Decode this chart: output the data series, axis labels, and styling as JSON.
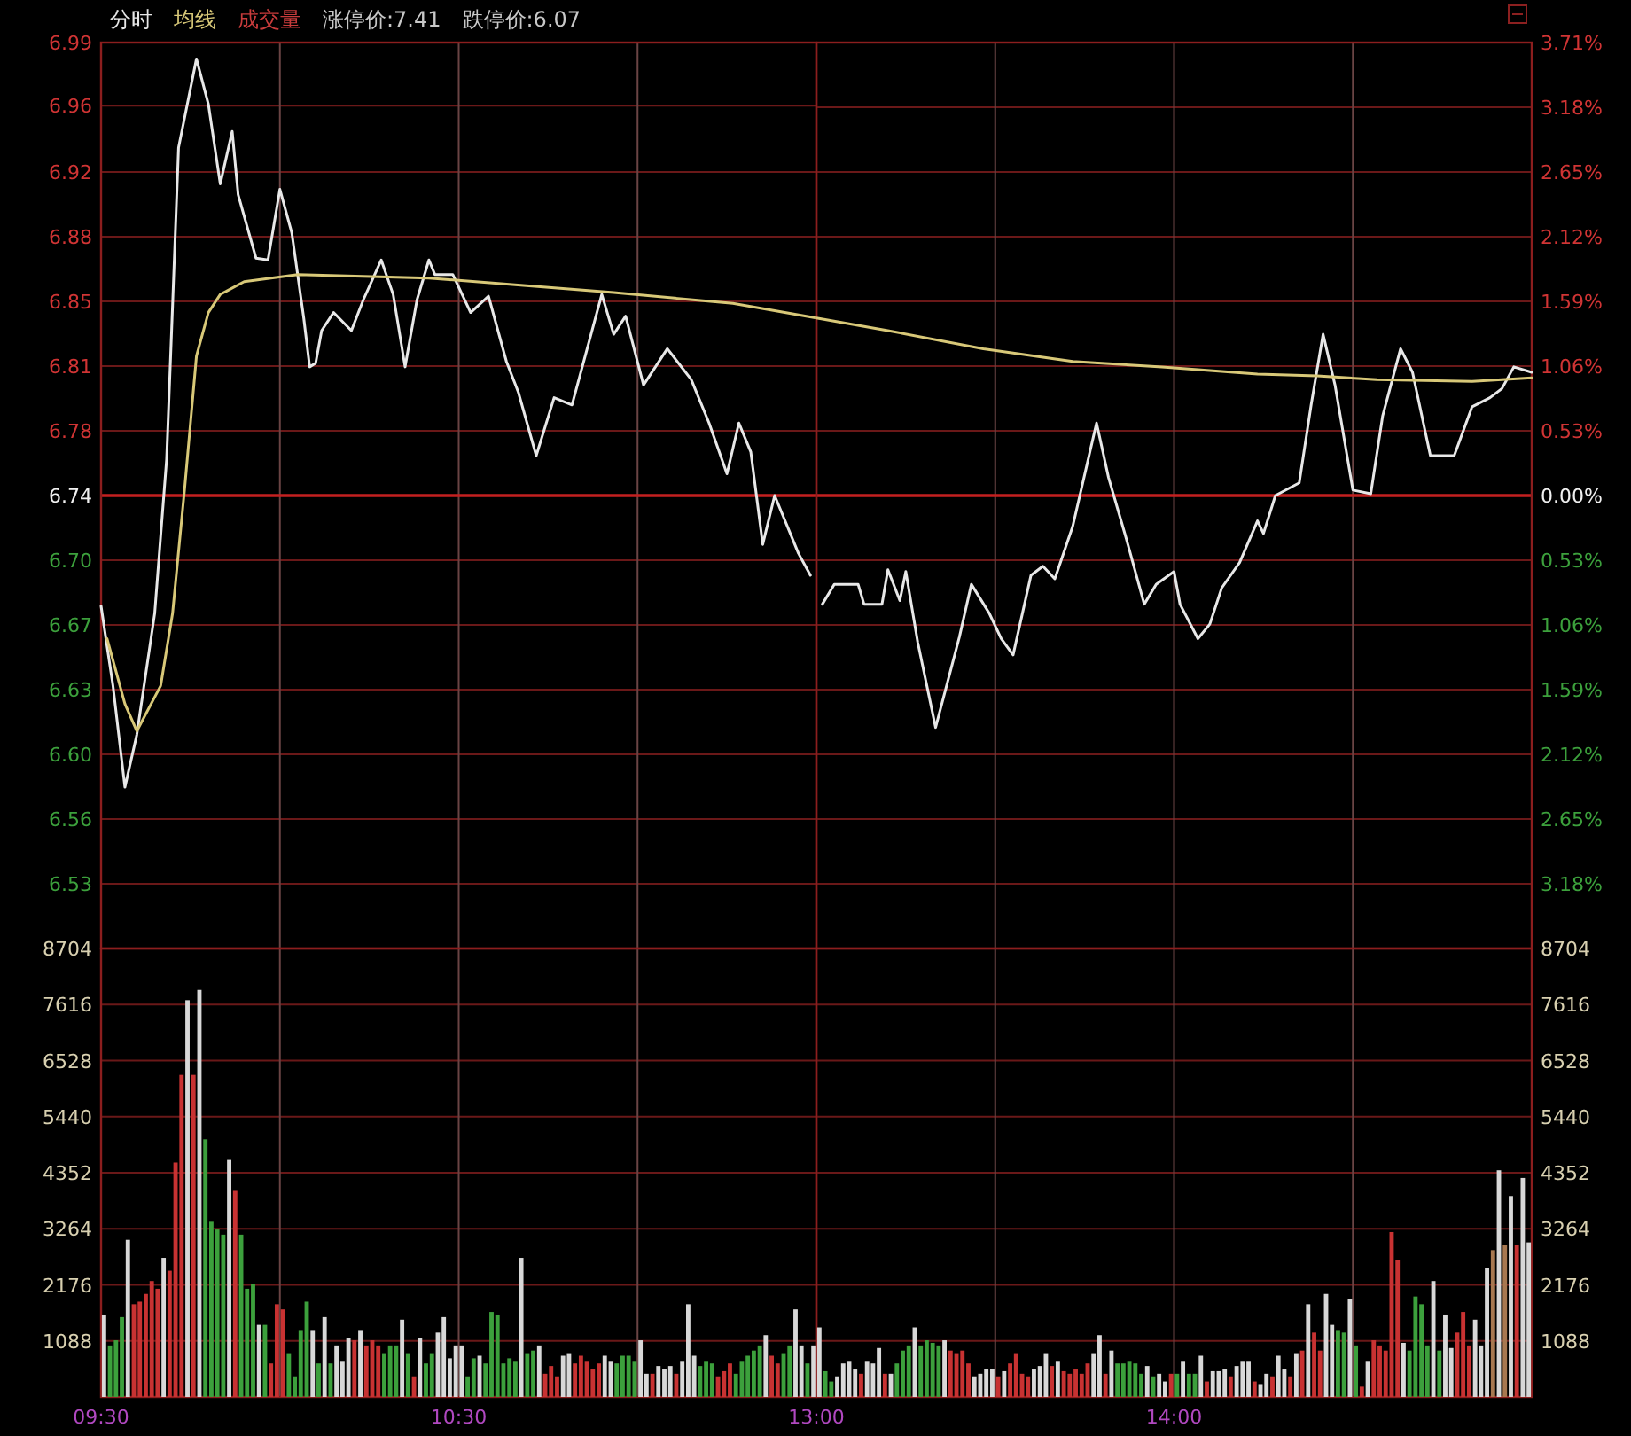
{
  "chart_data": [
    {
      "type": "line",
      "series": [
        {
          "name": "分时",
          "color": "#e8e8e8",
          "x": [
            9.5,
            9.5333,
            9.5667,
            9.6,
            9.65,
            9.6833,
            9.7,
            9.7167,
            9.7667,
            9.8,
            9.8333,
            9.8667,
            9.8833,
            9.9333,
            9.9667,
            10,
            10.0333,
            10.0667,
            10.0833,
            10.1,
            10.1167,
            10.15,
            10.2,
            10.2333,
            10.2833,
            10.3167,
            10.35,
            10.3833,
            10.4167,
            10.4333,
            10.4833,
            10.5333,
            10.5833,
            10.6333,
            10.6667,
            10.7167,
            10.7667,
            10.8167,
            10.9,
            10.9333,
            10.9667,
            11.0167,
            11.0833,
            11.15,
            11.2,
            11.25,
            11.2833,
            11.3167,
            11.35,
            11.3833,
            11.45,
            11.4833
          ],
          "values": [
            6.679,
            6.635,
            6.579,
            6.608,
            6.675,
            6.76,
            6.845,
            6.932,
            6.981,
            6.956,
            6.912,
            6.941,
            6.906,
            6.871,
            6.87,
            6.909,
            6.885,
            6.838,
            6.811,
            6.813,
            6.831,
            6.841,
            6.831,
            6.848,
            6.87,
            6.851,
            6.811,
            6.848,
            6.87,
            6.862,
            6.862,
            6.841,
            6.85,
            6.814,
            6.797,
            6.762,
            6.794,
            6.79,
            6.851,
            6.829,
            6.839,
            6.801,
            6.821,
            6.804,
            6.78,
            6.752,
            6.78,
            6.764,
            6.713,
            6.74,
            6.708,
            6.696
          ]
        },
        {
          "name": "均线",
          "color": "#d8c878",
          "x": [
            9.5167,
            9.5667,
            9.6,
            9.6667,
            9.7,
            9.7333,
            9.7667,
            9.8,
            9.8333,
            9.9,
            10.05,
            10.4167,
            10.9333,
            11.2667,
            11.5
          ],
          "values": [
            6.661,
            6.625,
            6.61,
            6.635,
            6.675,
            6.743,
            6.817,
            6.841,
            6.851,
            6.858,
            6.862,
            6.86,
            6.852,
            6.846,
            6.838
          ]
        }
      ],
      "xlim": [
        9.5,
        11.5
      ],
      "xticks": [
        {
          "value": 9.5,
          "label": null
        },
        {
          "value": 10,
          "label": null
        },
        {
          "value": 10.5,
          "label": null
        },
        {
          "value": 11,
          "label": null
        },
        {
          "value": 11.5,
          "label": null
        }
      ],
      "ylim": [
        6.49,
        6.99
      ],
      "yticks": [
        6.99,
        {
          "value": 6.9551,
          "label": "6.96"
        },
        {
          "value": 6.9186,
          "label": "6.92"
        },
        {
          "value": 6.8829,
          "label": "6.88"
        },
        {
          "value": 6.8471,
          "label": "6.85"
        },
        {
          "value": 6.8114,
          "label": "6.81"
        },
        {
          "value": 6.7757,
          "label": "6.78"
        },
        6.74,
        {
          "value": 6.7043,
          "label": "6.70"
        },
        {
          "value": 6.6686,
          "label": "6.67"
        },
        {
          "value": 6.6329,
          "label": "6.63"
        },
        {
          "value": 6.5971,
          "label": "6.60"
        },
        {
          "value": 6.5614,
          "label": "6.56"
        },
        {
          "value": 6.5257,
          "label": "6.53"
        }
      ],
      "ref_lines": [
        {
          "axis": "y",
          "value": 6.74,
          "color": "#c42020"
        }
      ],
      "grid": true,
      "legend": "top left",
      "tick_labels": "y",
      "annotations": [
        "涨停价:7.41",
        "跌停价:6.07"
      ]
    },
    {
      "type": "line",
      "series": [
        {
          "color": "#e8e8e8",
          "x": [
            13.0167,
            13.05,
            13.1167,
            13.1333,
            13.1833,
            13.2,
            13.2333,
            13.25,
            13.2833,
            13.3333,
            13.4,
            13.4333,
            13.4833,
            13.5167,
            13.55,
            13.6,
            13.6333,
            13.6667,
            13.7167,
            13.7833,
            13.8167,
            13.8667,
            13.9167,
            13.95,
            14,
            14.0167,
            14.0667,
            14.1,
            14.1333,
            14.1833,
            14.2333,
            14.25,
            14.2833,
            14.35,
            14.3833,
            14.4167,
            14.45,
            14.5,
            14.55,
            14.5833,
            14.6333,
            14.6667,
            14.7167,
            14.7833,
            14.8333,
            14.8833,
            14.9167,
            14.95,
            15
          ],
          "values": [
            6.68,
            6.691,
            6.691,
            6.68,
            6.68,
            6.699,
            6.682,
            6.698,
            6.659,
            6.612,
            6.662,
            6.691,
            6.675,
            6.661,
            6.652,
            6.696,
            6.701,
            6.694,
            6.723,
            6.78,
            6.75,
            6.716,
            6.68,
            6.691,
            6.698,
            6.68,
            6.661,
            6.669,
            6.689,
            6.703,
            6.726,
            6.719,
            6.74,
            6.747,
            6.79,
            6.829,
            6.801,
            6.743,
            6.741,
            6.784,
            6.821,
            6.808,
            6.762,
            6.762,
            6.789,
            6.794,
            6.799,
            6.811,
            6.808
          ]
        },
        {
          "color": "#d8c878",
          "x": [
            13,
            13.2,
            13.4667,
            13.7167,
            13.9667,
            14.2333,
            14.4,
            14.5667,
            14.8333,
            15
          ],
          "values": [
            6.838,
            6.831,
            6.821,
            6.814,
            6.811,
            6.807,
            6.806,
            6.804,
            6.803,
            6.805
          ]
        }
      ],
      "xlim": [
        13,
        15
      ],
      "xticks": [
        {
          "value": 13,
          "label": null
        },
        {
          "value": 13.5,
          "label": null
        },
        {
          "value": 14,
          "label": null
        },
        {
          "value": 14.5,
          "label": null
        },
        {
          "value": 15,
          "label": null
        }
      ],
      "ylim": [
        6.49,
        6.99
      ],
      "y2lim": [
        -3.71,
        3.71
      ],
      "y2ticks": [
        {
          "value": 3.71,
          "label": "3.71%"
        },
        {
          "value": 3.18,
          "label": "3.18%"
        },
        {
          "value": 2.65,
          "label": "2.65%"
        },
        {
          "value": 2.12,
          "label": "2.12%"
        },
        {
          "value": 1.59,
          "label": "1.59%"
        },
        {
          "value": 1.06,
          "label": "1.06%"
        },
        {
          "value": 0.53,
          "label": "0.53%"
        },
        {
          "value": 0,
          "label": "0.00%"
        },
        {
          "value": -0.53,
          "label": "0.53%"
        },
        {
          "value": -1.06,
          "label": "1.06%"
        },
        {
          "value": -1.59,
          "label": "1.59%"
        },
        {
          "value": -2.12,
          "label": "2.12%"
        },
        {
          "value": -2.65,
          "label": "2.65%"
        },
        {
          "value": -3.18,
          "label": "3.18%"
        }
      ],
      "ref_lines": [
        {
          "axis": "y",
          "value": 6.74,
          "color": "#c42020"
        }
      ],
      "grid": true,
      "tick_labels": "y"
    },
    {
      "type": "bar",
      "x": [
        9.5083,
        9.525,
        9.5417,
        9.5583,
        9.575,
        9.5917,
        9.6083,
        9.625,
        9.6417,
        9.6583,
        9.675,
        9.6917,
        9.7083,
        9.725,
        9.7417,
        9.7583,
        9.775,
        9.7917,
        9.8083,
        9.825,
        9.8417,
        9.8583,
        9.875,
        9.8917,
        9.9083,
        9.925,
        9.9417,
        9.9583,
        9.975,
        9.9917,
        10.0083,
        10.025,
        10.0417,
        10.0583,
        10.075,
        10.0917,
        10.1083,
        10.125,
        10.1417,
        10.1583,
        10.175,
        10.1917,
        10.2083,
        10.225,
        10.2417,
        10.2583,
        10.275,
        10.2917,
        10.3083,
        10.325,
        10.3417,
        10.3583,
        10.375,
        10.3917,
        10.4083,
        10.425,
        10.4417,
        10.4583,
        10.475,
        10.4917,
        10.5083,
        10.525,
        10.5417,
        10.5583,
        10.575,
        10.5917,
        10.6083,
        10.625,
        10.6417,
        10.6583,
        10.675,
        10.6917,
        10.7083,
        10.725,
        10.7417,
        10.7583,
        10.775,
        10.7917,
        10.8083,
        10.825,
        10.8417,
        10.8583,
        10.875,
        10.8917,
        10.9083,
        10.925,
        10.9417,
        10.9583,
        10.975,
        10.9917,
        11.0083,
        11.025,
        11.0417,
        11.0583,
        11.075,
        11.0917,
        11.1083,
        11.125,
        11.1417,
        11.1583,
        11.175,
        11.1917,
        11.2083,
        11.225,
        11.2417,
        11.2583,
        11.275,
        11.2917,
        11.3083,
        11.325,
        11.3417,
        11.3583,
        11.375,
        11.3917,
        11.4083,
        11.425,
        11.4417,
        11.4583,
        11.475,
        11.4917
      ],
      "series": [
        {
          "name": "成交量",
          "color": "#c83c3c",
          "colors": [
            "#d8d8d8",
            "#3ca03c",
            "#3ca03c",
            "#3ca03c",
            "#d8d8d8",
            "#c83232",
            "#c83232",
            "#c83232",
            "#c83232",
            "#c83232",
            "#d8d8d8",
            "#c83232",
            "#c83232",
            "#c83232",
            "#d8d8d8",
            "#c83232",
            "#d8d8d8",
            "#3ca03c",
            "#3ca03c",
            "#3ca03c",
            "#3ca03c",
            "#d8d8d8",
            "#c83232",
            "#3ca03c",
            "#3ca03c",
            "#3ca03c",
            "#d8d8d8",
            "#3ca03c",
            "#c83232",
            "#c83232",
            "#c83232",
            "#3ca03c",
            "#3ca03c",
            "#3ca03c",
            "#3ca03c",
            "#d8d8d8",
            "#3ca03c",
            "#d8d8d8",
            "#3ca03c",
            "#d8d8d8",
            "#d8d8d8",
            "#d8d8d8",
            "#c83232",
            "#d8d8d8",
            "#c83232",
            "#c83232",
            "#c83232",
            "#3ca03c",
            "#3ca03c",
            "#3ca03c",
            "#d8d8d8",
            "#3ca03c",
            "#c83232",
            "#d8d8d8",
            "#3ca03c",
            "#3ca03c",
            "#d8d8d8",
            "#d8d8d8",
            "#d8d8d8",
            "#d8d8d8",
            "#d8d8d8",
            "#3ca03c",
            "#3ca03c",
            "#d8d8d8",
            "#3ca03c",
            "#3ca03c",
            "#3ca03c",
            "#3ca03c",
            "#3ca03c",
            "#3ca03c",
            "#d8d8d8",
            "#3ca03c",
            "#3ca03c",
            "#d8d8d8",
            "#c83232",
            "#c83232",
            "#c83232",
            "#d8d8d8",
            "#d8d8d8",
            "#c83232",
            "#c83232",
            "#c83232",
            "#c83232",
            "#c83232",
            "#d8d8d8",
            "#d8d8d8",
            "#3ca03c",
            "#3ca03c",
            "#3ca03c",
            "#3ca03c",
            "#d8d8d8",
            "#d8d8d8",
            "#c83232",
            "#d8d8d8",
            "#d8d8d8",
            "#d8d8d8",
            "#c83232",
            "#d8d8d8",
            "#d8d8d8",
            "#d8d8d8",
            "#3ca03c",
            "#3ca03c",
            "#3ca03c",
            "#c83232",
            "#c83232",
            "#c83232",
            "#3ca03c",
            "#3ca03c",
            "#3ca03c",
            "#3ca03c",
            "#3ca03c",
            "#d8d8d8",
            "#c83232",
            "#c83232",
            "#3ca03c",
            "#3ca03c",
            "#d8d8d8",
            "#d8d8d8",
            "#3ca03c",
            "#d8d8d8"
          ],
          "values": [
            1600,
            1000,
            1100,
            1550,
            3050,
            1800,
            1850,
            2000,
            2250,
            2100,
            2700,
            2450,
            4550,
            6250,
            7700,
            6250,
            7900,
            5000,
            3400,
            3250,
            3150,
            4600,
            4000,
            3150,
            2100,
            2200,
            1400,
            1400,
            650,
            1800,
            1700,
            850,
            400,
            1300,
            1850,
            1300,
            650,
            1550,
            650,
            1000,
            700,
            1150,
            1100,
            1300,
            1000,
            1100,
            1000,
            850,
            1000,
            1000,
            1500,
            850,
            400,
            1150,
            650,
            850,
            1250,
            1550,
            750,
            1000,
            1000,
            400,
            750,
            800,
            650,
            1650,
            1600,
            650,
            750,
            700,
            2700,
            850,
            900,
            1000,
            450,
            600,
            400,
            800,
            850,
            650,
            800,
            700,
            550,
            650,
            800,
            700,
            650,
            800,
            800,
            700,
            1100,
            450,
            450,
            600,
            550,
            600,
            450,
            700,
            1800,
            800,
            600,
            700,
            650,
            400,
            500,
            650,
            450,
            700,
            800,
            900,
            1000,
            1200,
            800,
            650,
            850,
            1000,
            1700,
            1000,
            650,
            1000
          ]
        }
      ],
      "xlim": [
        9.5,
        11.5
      ],
      "xticks": [
        {
          "value": 9.5,
          "label": "09:30"
        },
        {
          "value": 10,
          "label": null
        },
        {
          "value": 10.5,
          "label": "10:30"
        },
        {
          "value": 11,
          "label": null
        },
        {
          "value": 11.5,
          "label": null
        }
      ],
      "ylim": [
        0,
        8704
      ],
      "yticks": [
        1088,
        2176,
        3264,
        4352,
        5440,
        6528,
        7616,
        8704
      ],
      "grid": true,
      "legend": "top left"
    },
    {
      "type": "bar",
      "x": [
        13.0083,
        13.025,
        13.0417,
        13.0583,
        13.075,
        13.0917,
        13.1083,
        13.125,
        13.1417,
        13.1583,
        13.175,
        13.1917,
        13.2083,
        13.225,
        13.2417,
        13.2583,
        13.275,
        13.2917,
        13.3083,
        13.325,
        13.3417,
        13.3583,
        13.375,
        13.3917,
        13.4083,
        13.425,
        13.4417,
        13.4583,
        13.475,
        13.4917,
        13.5083,
        13.525,
        13.5417,
        13.5583,
        13.575,
        13.5917,
        13.6083,
        13.625,
        13.6417,
        13.6583,
        13.675,
        13.6917,
        13.7083,
        13.725,
        13.7417,
        13.7583,
        13.775,
        13.7917,
        13.8083,
        13.825,
        13.8417,
        13.8583,
        13.875,
        13.8917,
        13.9083,
        13.925,
        13.9417,
        13.9583,
        13.975,
        13.9917,
        14.0083,
        14.025,
        14.0417,
        14.0583,
        14.075,
        14.0917,
        14.1083,
        14.125,
        14.1417,
        14.1583,
        14.175,
        14.1917,
        14.2083,
        14.225,
        14.2417,
        14.2583,
        14.275,
        14.2917,
        14.3083,
        14.325,
        14.3417,
        14.3583,
        14.375,
        14.3917,
        14.4083,
        14.425,
        14.4417,
        14.4583,
        14.475,
        14.4917,
        14.5083,
        14.525,
        14.5417,
        14.5583,
        14.575,
        14.5917,
        14.6083,
        14.625,
        14.6417,
        14.6583,
        14.675,
        14.6917,
        14.7083,
        14.725,
        14.7417,
        14.7583,
        14.775,
        14.7917,
        14.8083,
        14.825,
        14.8417,
        14.8583,
        14.875,
        14.8917,
        14.9083,
        14.925,
        14.9417,
        14.9583,
        14.975,
        14.9917
      ],
      "series": [
        {
          "axis": "y2",
          "colors": [
            "#d8d8d8",
            "#3ca03c",
            "#3ca03c",
            "#d8d8d8",
            "#d8d8d8",
            "#d8d8d8",
            "#d8d8d8",
            "#c83232",
            "#d8d8d8",
            "#d8d8d8",
            "#d8d8d8",
            "#c83232",
            "#d8d8d8",
            "#3ca03c",
            "#3ca03c",
            "#3ca03c",
            "#d8d8d8",
            "#3ca03c",
            "#3ca03c",
            "#3ca03c",
            "#3ca03c",
            "#d8d8d8",
            "#c83232",
            "#c83232",
            "#c83232",
            "#c83232",
            "#d8d8d8",
            "#d8d8d8",
            "#d8d8d8",
            "#d8d8d8",
            "#c83232",
            "#d8d8d8",
            "#c83232",
            "#c83232",
            "#c83232",
            "#c83232",
            "#d8d8d8",
            "#d8d8d8",
            "#d8d8d8",
            "#c83232",
            "#d8d8d8",
            "#c83232",
            "#c83232",
            "#c83232",
            "#c83232",
            "#c83232",
            "#d8d8d8",
            "#d8d8d8",
            "#c83232",
            "#d8d8d8",
            "#3ca03c",
            "#3ca03c",
            "#3ca03c",
            "#3ca03c",
            "#3ca03c",
            "#d8d8d8",
            "#3ca03c",
            "#d8d8d8",
            "#d8d8d8",
            "#c83232",
            "#3ca03c",
            "#d8d8d8",
            "#3ca03c",
            "#3ca03c",
            "#d8d8d8",
            "#c83232",
            "#d8d8d8",
            "#d8d8d8",
            "#d8d8d8",
            "#c83232",
            "#d8d8d8",
            "#d8d8d8",
            "#d8d8d8",
            "#c83232",
            "#d8d8d8",
            "#d8d8d8",
            "#c83232",
            "#d8d8d8",
            "#d8d8d8",
            "#c83232",
            "#d8d8d8",
            "#c83232",
            "#d8d8d8",
            "#c83232",
            "#c83232",
            "#d8d8d8",
            "#d8d8d8",
            "#3ca03c",
            "#3ca03c",
            "#d8d8d8",
            "#3ca03c",
            "#c83232",
            "#d8d8d8",
            "#c83232",
            "#c83232",
            "#c83232",
            "#c83232",
            "#c83232",
            "#d8d8d8",
            "#3ca03c",
            "#3ca03c",
            "#3ca03c",
            "#3ca03c",
            "#d8d8d8",
            "#3ca03c",
            "#d8d8d8",
            "#d8d8d8",
            "#c83232",
            "#c83232",
            "#c83232",
            "#d8d8d8",
            "#d8d8d8",
            "#d8d8d8",
            "#a87850",
            "#d8d8d8",
            "#a87850",
            "#d8d8d8",
            "#c83232",
            "#d8d8d8",
            "#d8d8d8"
          ],
          "values": [
            1350,
            500,
            300,
            400,
            650,
            700,
            550,
            450,
            700,
            650,
            950,
            450,
            450,
            650,
            900,
            1000,
            1350,
            1000,
            1100,
            1050,
            1000,
            1100,
            900,
            850,
            900,
            650,
            400,
            450,
            550,
            550,
            400,
            500,
            650,
            850,
            450,
            400,
            550,
            600,
            850,
            600,
            700,
            500,
            450,
            550,
            450,
            650,
            850,
            1200,
            450,
            900,
            650,
            650,
            700,
            650,
            450,
            600,
            400,
            450,
            300,
            450,
            450,
            700,
            450,
            450,
            800,
            300,
            500,
            500,
            550,
            400,
            600,
            700,
            700,
            300,
            250,
            450,
            400,
            800,
            550,
            400,
            850,
            900,
            1800,
            1250,
            900,
            2000,
            1400,
            1300,
            1250,
            1900,
            1000,
            200,
            700,
            1100,
            1000,
            900,
            3200,
            2650,
            1050,
            900,
            1950,
            1800,
            1000,
            2250,
            900,
            1600,
            950,
            1250,
            1650,
            1000,
            1500,
            1000,
            2500,
            2850,
            4400,
            2950,
            3900,
            2950,
            4250,
            3000
          ]
        }
      ],
      "xlim": [
        13,
        15
      ],
      "xticks": [
        {
          "value": 13,
          "label": "13:00"
        },
        {
          "value": 13.5,
          "label": null
        },
        {
          "value": 14,
          "label": "14:00"
        },
        {
          "value": 14.5,
          "label": null
        },
        {
          "value": 15,
          "label": null
        }
      ],
      "y2lim": [
        0,
        8704
      ],
      "y2ticks": [
        1088,
        2176,
        3264,
        4352,
        5440,
        6528,
        7616,
        8704
      ],
      "grid": true
    }
  ]
}
